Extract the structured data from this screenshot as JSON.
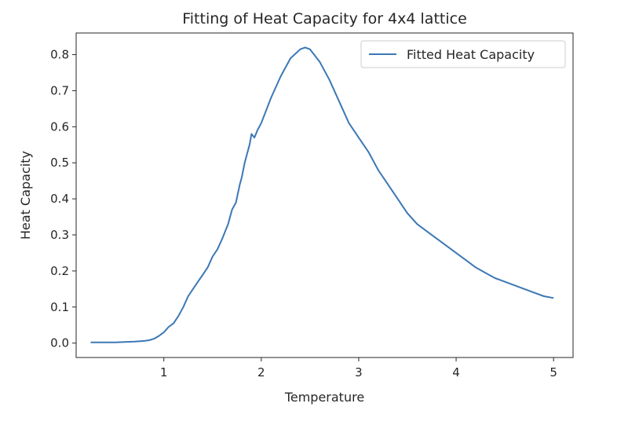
{
  "chart_data": {
    "type": "line",
    "title": "Fitting of Heat Capacity for 4x4 lattice",
    "xlabel": "Temperature",
    "ylabel": "Heat Capacity",
    "xlim": [
      0.1,
      5.2
    ],
    "ylim": [
      -0.04,
      0.86
    ],
    "xticks": [
      1,
      2,
      3,
      4,
      5
    ],
    "xtick_labels": [
      "1",
      "2",
      "3",
      "4",
      "5"
    ],
    "yticks": [
      0.0,
      0.1,
      0.2,
      0.3,
      0.4,
      0.5,
      0.6,
      0.7,
      0.8
    ],
    "ytick_labels": [
      "0.0",
      "0.1",
      "0.2",
      "0.3",
      "0.4",
      "0.5",
      "0.6",
      "0.7",
      "0.8"
    ],
    "grid": false,
    "legend_position": "top-right",
    "series": [
      {
        "name": "Fitted Heat Capacity",
        "color": "#3b78b5",
        "x": [
          0.25,
          0.4,
          0.5,
          0.6,
          0.7,
          0.8,
          0.85,
          0.9,
          0.95,
          1.0,
          1.05,
          1.1,
          1.15,
          1.2,
          1.25,
          1.3,
          1.35,
          1.4,
          1.45,
          1.5,
          1.55,
          1.6,
          1.63,
          1.66,
          1.7,
          1.74,
          1.78,
          1.8,
          1.83,
          1.86,
          1.88,
          1.9,
          1.93,
          1.96,
          2.0,
          2.1,
          2.2,
          2.3,
          2.4,
          2.45,
          2.5,
          2.6,
          2.7,
          2.8,
          2.9,
          3.0,
          3.1,
          3.2,
          3.3,
          3.4,
          3.5,
          3.6,
          3.7,
          3.8,
          3.9,
          4.0,
          4.1,
          4.2,
          4.3,
          4.4,
          4.5,
          4.6,
          4.7,
          4.8,
          4.9,
          5.0
        ],
        "y": [
          0.002,
          0.002,
          0.002,
          0.003,
          0.004,
          0.006,
          0.008,
          0.012,
          0.02,
          0.03,
          0.045,
          0.055,
          0.075,
          0.1,
          0.13,
          0.15,
          0.17,
          0.19,
          0.21,
          0.24,
          0.26,
          0.29,
          0.31,
          0.33,
          0.37,
          0.39,
          0.44,
          0.46,
          0.5,
          0.53,
          0.55,
          0.58,
          0.57,
          0.59,
          0.61,
          0.68,
          0.74,
          0.79,
          0.815,
          0.82,
          0.815,
          0.78,
          0.73,
          0.67,
          0.61,
          0.57,
          0.53,
          0.48,
          0.44,
          0.4,
          0.36,
          0.33,
          0.31,
          0.29,
          0.27,
          0.25,
          0.23,
          0.21,
          0.195,
          0.18,
          0.17,
          0.16,
          0.15,
          0.14,
          0.13,
          0.125
        ]
      }
    ]
  }
}
